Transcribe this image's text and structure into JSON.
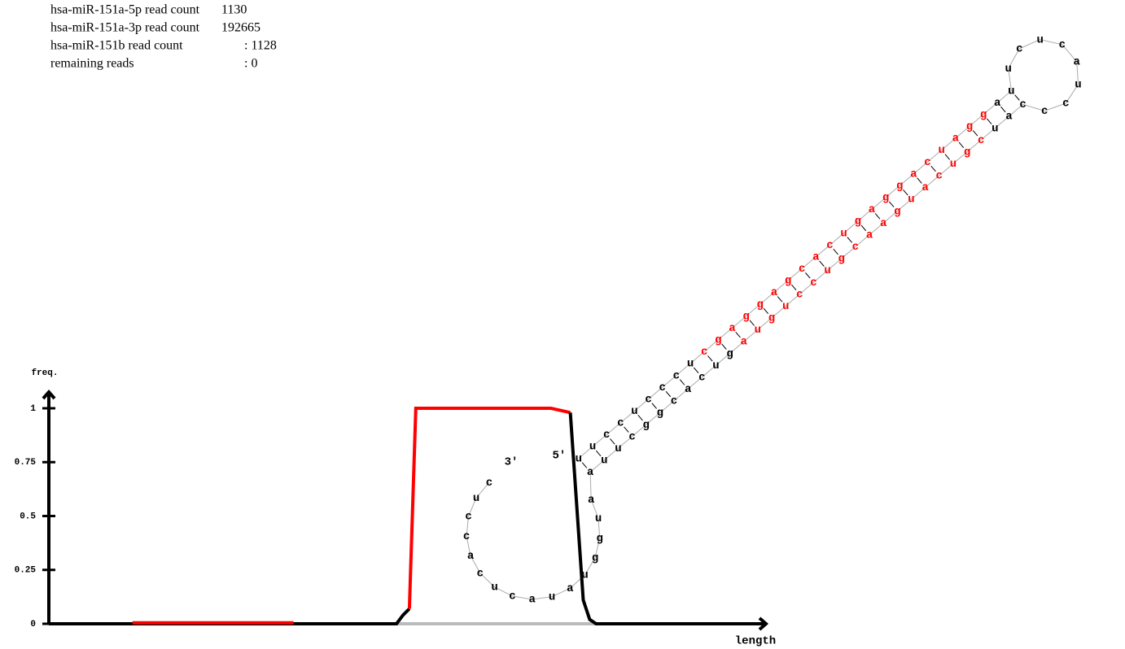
{
  "header": {
    "lines": [
      {
        "label": "hsa-miR-151a-5p read count",
        "value": "1130"
      },
      {
        "label": "hsa-miR-151a-3p read count",
        "value": "192665"
      },
      {
        "label": "hsa-miR-151b read count",
        "value": ": 1128"
      },
      {
        "label": "remaining reads",
        "value": ": 0"
      }
    ]
  },
  "chart_data": {
    "type": "line",
    "ylabel": "freq.",
    "xlabel": "length",
    "xlim": [
      0,
      110
    ],
    "ylim": [
      0,
      1
    ],
    "yticks": [
      0,
      0.25,
      0.5,
      0.75,
      1
    ],
    "series": [
      {
        "color": "#bbbbbb",
        "x": [
          54,
          85
        ],
        "values": [
          0,
          0
        ]
      },
      {
        "color": "#000000",
        "x": [
          0,
          13
        ],
        "values": [
          0,
          0
        ]
      },
      {
        "color": "#ff0000",
        "x": [
          13,
          38
        ],
        "values": [
          0.005,
          0.005
        ]
      },
      {
        "color": "#000000",
        "x": [
          38,
          54,
          55,
          56
        ],
        "values": [
          0,
          0,
          0.04,
          0.07
        ]
      },
      {
        "color": "#ff0000",
        "x": [
          56,
          57,
          78,
          81
        ],
        "values": [
          0.07,
          1,
          1,
          0.98
        ]
      },
      {
        "color": "#000000",
        "x": [
          81,
          83,
          84,
          85,
          110
        ],
        "values": [
          0.98,
          0.11,
          0.02,
          0,
          0
        ]
      }
    ]
  },
  "structure": {
    "five_prime": "5'",
    "three_prime": "3'",
    "arm_5p": [
      {
        "color": "#000000",
        "bases": [
          "u",
          "u",
          "c",
          "c",
          "u",
          "c",
          "c",
          "c",
          "u"
        ]
      },
      {
        "color": "#ff0000",
        "bases": [
          "c",
          "g",
          "a",
          "g",
          "g",
          "a",
          "g",
          "c",
          "a",
          "c",
          "u",
          "g",
          "a",
          "g",
          "g",
          "a",
          "c",
          "u",
          "a",
          "g",
          "g"
        ]
      },
      {
        "color": "#000000",
        "bases": [
          "a",
          "u"
        ]
      }
    ],
    "terminal_loop": [
      {
        "color": "#000000",
        "bases": [
          "u",
          "c",
          "u",
          "c",
          "a",
          "u",
          "c",
          "c"
        ]
      }
    ],
    "arm_3p": [
      {
        "color": "#000000",
        "bases": [
          "c",
          "a",
          "u"
        ]
      },
      {
        "color": "#ff0000",
        "bases": [
          "c",
          "g",
          "u",
          "c",
          "a",
          "u",
          "g",
          "a",
          "a",
          "c",
          "g",
          "u",
          "c",
          "c",
          "u",
          "g",
          "u",
          "a"
        ]
      },
      {
        "color": "#000000",
        "bases": [
          "g",
          "u",
          "c",
          "a",
          "c",
          "g",
          "g",
          "c",
          "u",
          "u",
          "a"
        ]
      }
    ],
    "bulge_loop": [
      {
        "color": "#000000",
        "bases": [
          "a",
          "u",
          "g",
          "g",
          "u",
          "a",
          "u",
          "a",
          "c",
          "u",
          "c",
          "a",
          "c",
          "c",
          "u",
          "c"
        ]
      }
    ]
  }
}
